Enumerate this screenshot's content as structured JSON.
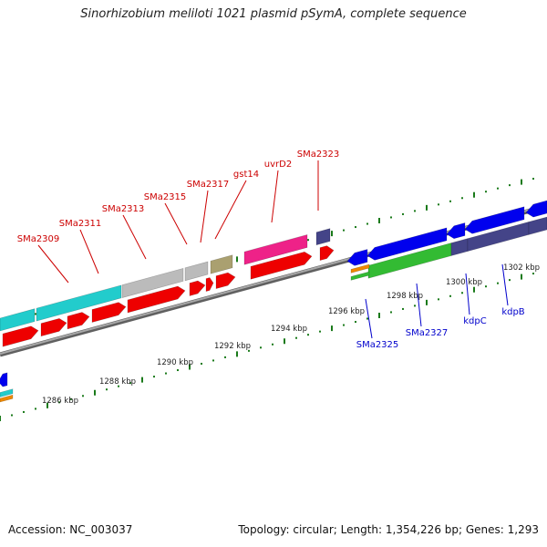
{
  "title": "Sinorhizobium meliloti 1021 plasmid pSymA, complete sequence",
  "footer": {
    "accession": "Accession: NC_003037",
    "summary": "Topology: circular; Length: 1,354,226 bp; Genes: 1,293"
  },
  "colors": {
    "reverse_label": "#cc0000",
    "forward_label": "#0000cc",
    "backbone": "#808080",
    "tick": "#1a7a1a",
    "red_gene": "#ee0000",
    "blue_gene": "#0000ee",
    "cyan_gene": "#22cccc",
    "gray_gene": "#bbbbbb",
    "olive_gene": "#aaa070",
    "magenta_gene": "#ee2288",
    "purple_gene": "#444488",
    "green_gene": "#33bb33",
    "orange_gene": "#ee8800"
  },
  "scale": {
    "unit": "kbp",
    "labels": [
      "1286 kbp",
      "1288 kbp",
      "1290 kbp",
      "1292 kbp",
      "1294 kbp",
      "1296 kbp",
      "1298 kbp",
      "1300 kbp",
      "1302 kbp"
    ]
  },
  "labels": {
    "reverse": [
      "SMa2309",
      "SMa2311",
      "SMa2313",
      "SMa2315",
      "SMa2317",
      "gst14",
      "uvrD2",
      "SMa2323"
    ],
    "forward": [
      "SMa2325",
      "SMa2327",
      "kdpC",
      "kdpB"
    ]
  }
}
